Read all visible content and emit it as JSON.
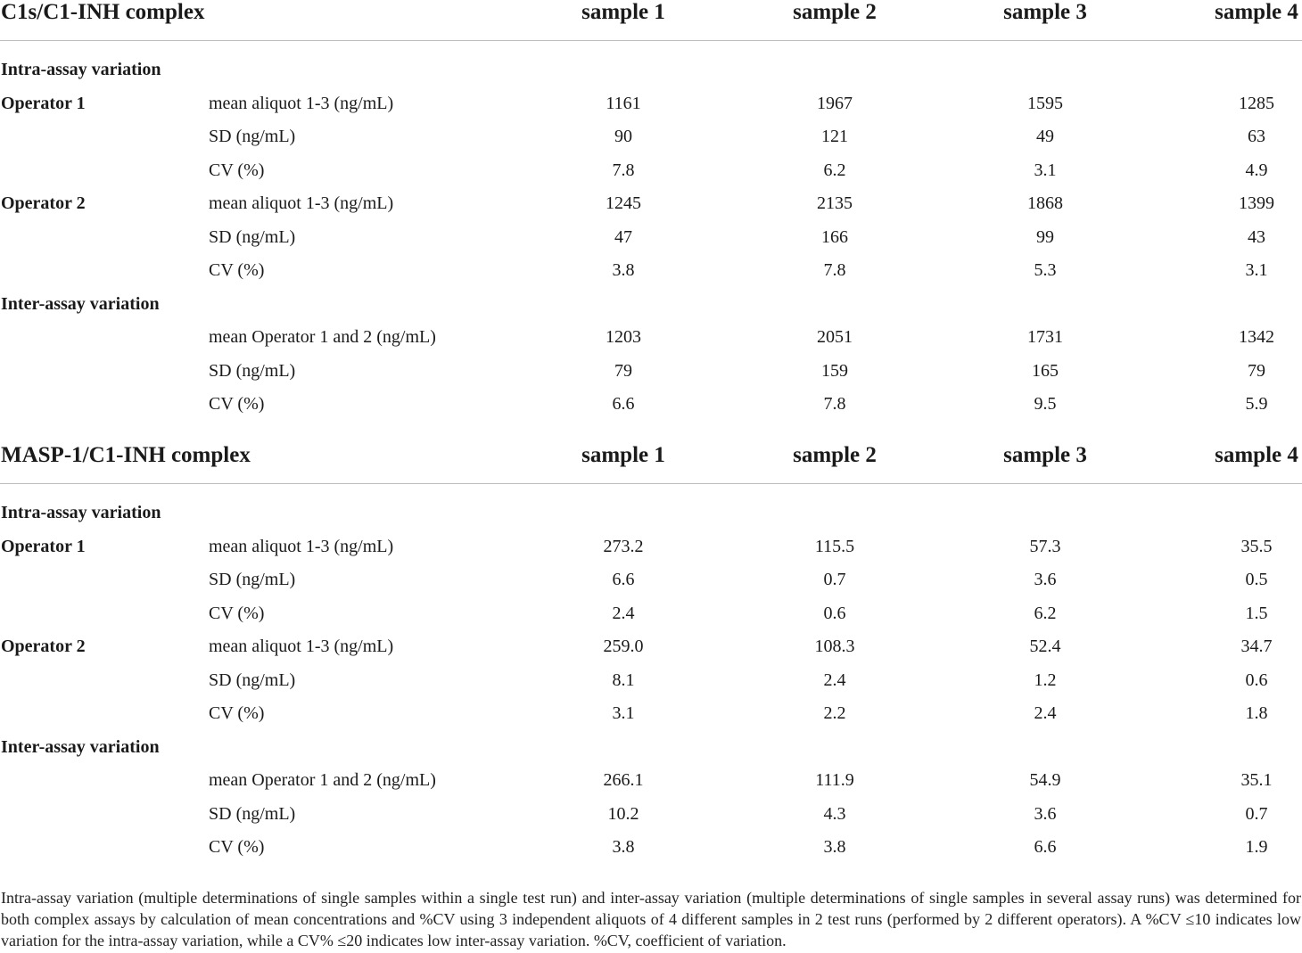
{
  "columns": [
    "sample 1",
    "sample 2",
    "sample 3",
    "sample 4"
  ],
  "sections": [
    {
      "title": "C1s/C1-INH complex",
      "rows": [
        {
          "group": "Intra-assay variation",
          "label": "",
          "values": []
        },
        {
          "group": "Operator 1",
          "label": "mean aliquot 1-3 (ng/mL)",
          "values": [
            "1161",
            "1967",
            "1595",
            "1285"
          ]
        },
        {
          "group": "",
          "label": "SD (ng/mL)",
          "values": [
            "90",
            "121",
            "49",
            "63"
          ]
        },
        {
          "group": "",
          "label": "CV (%)",
          "values": [
            "7.8",
            "6.2",
            "3.1",
            "4.9"
          ]
        },
        {
          "group": "Operator 2",
          "label": "mean aliquot 1-3 (ng/mL)",
          "values": [
            "1245",
            "2135",
            "1868",
            "1399"
          ]
        },
        {
          "group": "",
          "label": "SD (ng/mL)",
          "values": [
            "47",
            "166",
            "99",
            "43"
          ]
        },
        {
          "group": "",
          "label": "CV (%)",
          "values": [
            "3.8",
            "7.8",
            "5.3",
            "3.1"
          ]
        },
        {
          "group": "Inter-assay variation",
          "label": "",
          "values": []
        },
        {
          "group": "",
          "label": "mean Operator 1 and 2 (ng/mL)",
          "values": [
            "1203",
            "2051",
            "1731",
            "1342"
          ]
        },
        {
          "group": "",
          "label": "SD (ng/mL)",
          "values": [
            "79",
            "159",
            "165",
            "79"
          ]
        },
        {
          "group": "",
          "label": "CV (%)",
          "values": [
            "6.6",
            "7.8",
            "9.5",
            "5.9"
          ]
        }
      ]
    },
    {
      "title": "MASP-1/C1-INH complex",
      "rows": [
        {
          "group": "Intra-assay variation",
          "label": "",
          "values": []
        },
        {
          "group": "Operator 1",
          "label": "mean aliquot 1-3 (ng/mL)",
          "values": [
            "273.2",
            "115.5",
            "57.3",
            "35.5"
          ]
        },
        {
          "group": "",
          "label": "SD (ng/mL)",
          "values": [
            "6.6",
            "0.7",
            "3.6",
            "0.5"
          ]
        },
        {
          "group": "",
          "label": "CV (%)",
          "values": [
            "2.4",
            "0.6",
            "6.2",
            "1.5"
          ]
        },
        {
          "group": "Operator 2",
          "label": "mean aliquot 1-3 (ng/mL)",
          "values": [
            "259.0",
            "108.3",
            "52.4",
            "34.7"
          ]
        },
        {
          "group": "",
          "label": "SD (ng/mL)",
          "values": [
            "8.1",
            "2.4",
            "1.2",
            "0.6"
          ]
        },
        {
          "group": "",
          "label": "CV (%)",
          "values": [
            "3.1",
            "2.2",
            "2.4",
            "1.8"
          ]
        },
        {
          "group": "Inter-assay variation",
          "label": "",
          "values": []
        },
        {
          "group": "",
          "label": "mean Operator 1 and 2 (ng/mL)",
          "values": [
            "266.1",
            "111.9",
            "54.9",
            "35.1"
          ]
        },
        {
          "group": "",
          "label": "SD (ng/mL)",
          "values": [
            "10.2",
            "4.3",
            "3.6",
            "0.7"
          ]
        },
        {
          "group": "",
          "label": "CV (%)",
          "values": [
            "3.8",
            "3.8",
            "6.6",
            "1.9"
          ]
        }
      ]
    }
  ],
  "footnote": "Intra-assay variation (multiple determinations of single samples within a single test run) and inter-assay variation (multiple determinations of single samples in several assay runs) was determined for both complex assays by calculation of mean concentrations and %CV using 3 independent aliquots of 4 different samples in 2 test runs (performed by 2 different operators). A %CV ≤10 indicates low variation for the intra-assay variation, while a CV% ≤20 indicates low inter-assay variation. %CV, coefficient of variation."
}
